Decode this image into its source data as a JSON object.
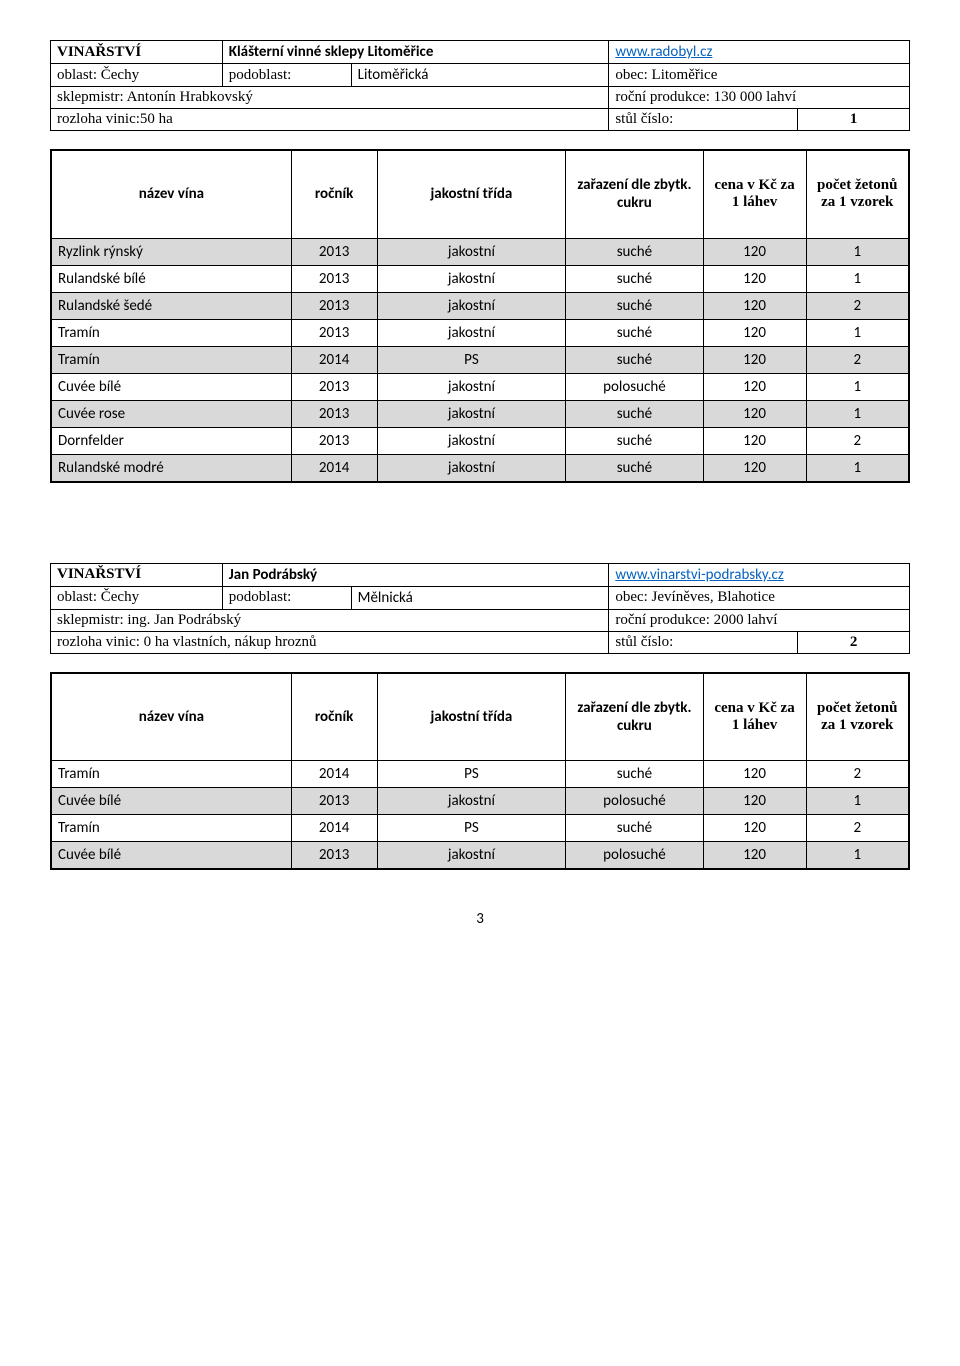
{
  "page_number": "3",
  "table_headers": {
    "name": "název vína",
    "year": "ročník",
    "class": "jakostní třída",
    "sugar": "zařazení dle zbytk. cukru",
    "price": "cena v Kč za 1 láhev",
    "tokens": "počet žetonů za 1 vzorek"
  },
  "winery1": {
    "label_winery": "VINAŘSTVÍ",
    "winery_name": "Klášterní vinné sklepy Litoměřice",
    "website": "www.radobyl.cz",
    "website_url": "#",
    "region_label": "oblast: Čechy",
    "subregion_label": "podoblast:",
    "subregion_value": "Litoměřická",
    "town_label": "obec: Litoměřice",
    "cellarmaster": "sklepmistr: Antonín Hrabkovský",
    "production": "roční produkce: 130 000 lahví",
    "area": "rozloha vinic:50 ha",
    "table_label": "stůl číslo:",
    "table_num": "1",
    "wines": [
      {
        "name": "Ryzlink rýnský",
        "year": "2013",
        "class": "jakostní",
        "sugar": "suché",
        "price": "120",
        "tokens": "1",
        "shaded": true
      },
      {
        "name": "Rulandské bílé",
        "year": "2013",
        "class": "jakostní",
        "sugar": "suché",
        "price": "120",
        "tokens": "1",
        "shaded": false
      },
      {
        "name": "Rulandské šedé",
        "year": "2013",
        "class": "jakostní",
        "sugar": "suché",
        "price": "120",
        "tokens": "2",
        "shaded": true
      },
      {
        "name": "Tramín",
        "year": "2013",
        "class": "jakostní",
        "sugar": "suché",
        "price": "120",
        "tokens": "1",
        "shaded": false
      },
      {
        "name": "Tramín",
        "year": "2014",
        "class": "PS",
        "sugar": "suché",
        "price": "120",
        "tokens": "2",
        "shaded": true
      },
      {
        "name": "Cuvée bílé",
        "year": "2013",
        "class": "jakostní",
        "sugar": "polosuché",
        "price": "120",
        "tokens": "1",
        "shaded": false
      },
      {
        "name": "Cuvée rose",
        "year": "2013",
        "class": "jakostní",
        "sugar": "suché",
        "price": "120",
        "tokens": "1",
        "shaded": true
      },
      {
        "name": "Dornfelder",
        "year": "2013",
        "class": "jakostní",
        "sugar": "suché",
        "price": "120",
        "tokens": "2",
        "shaded": false
      },
      {
        "name": "Rulandské modré",
        "year": "2014",
        "class": "jakostní",
        "sugar": "suché",
        "price": "120",
        "tokens": "1",
        "shaded": true
      }
    ]
  },
  "winery2": {
    "label_winery": "VINAŘSTVÍ",
    "winery_name": "Jan Podrábský",
    "website": "www.vinarstvi-podrabsky.cz",
    "website_url": "#",
    "region_label": "oblast: Čechy",
    "subregion_label": "podoblast:",
    "subregion_value": "Mělnická",
    "town_label": "obec: Jevíněves, Blahotice",
    "cellarmaster": "sklepmistr: ing. Jan Podrábský",
    "production": "roční produkce: 2000 lahví",
    "area": "rozloha vinic: 0 ha vlastních, nákup hroznů",
    "table_label": "stůl číslo:",
    "table_num": "2",
    "wines": [
      {
        "name": "Tramín",
        "year": "2014",
        "class": "PS",
        "sugar": "suché",
        "price": "120",
        "tokens": "2",
        "shaded": false
      },
      {
        "name": "Cuvée bílé",
        "year": "2013",
        "class": "jakostní",
        "sugar": "polosuché",
        "price": "120",
        "tokens": "1",
        "shaded": true
      },
      {
        "name": "Tramín",
        "year": "2014",
        "class": "PS",
        "sugar": "suché",
        "price": "120",
        "tokens": "2",
        "shaded": false
      },
      {
        "name": "Cuvée bílé",
        "year": "2013",
        "class": "jakostní",
        "sugar": "polosuché",
        "price": "120",
        "tokens": "1",
        "shaded": true
      }
    ]
  }
}
